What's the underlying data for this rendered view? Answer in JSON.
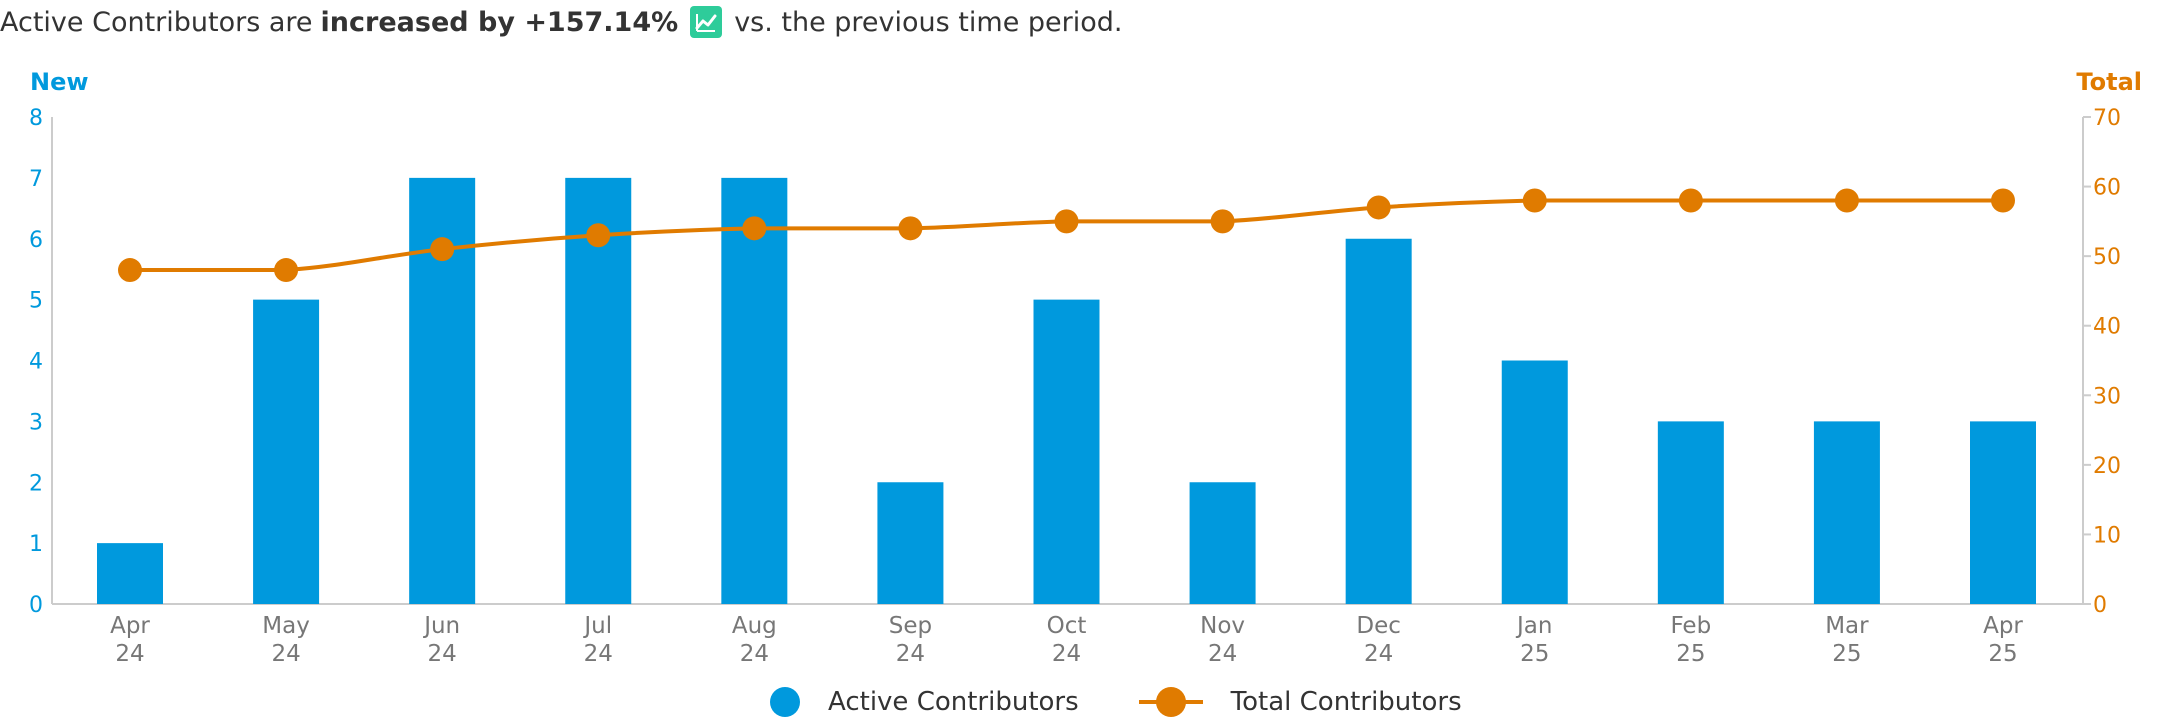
{
  "headline": {
    "prefix": "Active Contributors are",
    "emphasis": "increased by +157.14%",
    "suffix": "vs. the previous time period.",
    "badge_icon": "trend-up-chart-icon",
    "badge_color": "#2ecc9a"
  },
  "chart_data": {
    "type": "bar+line",
    "categories": [
      "Apr\n24",
      "May\n24",
      "Jun\n24",
      "Jul\n24",
      "Aug\n24",
      "Sep\n24",
      "Oct\n24",
      "Nov\n24",
      "Dec\n24",
      "Jan\n25",
      "Feb\n25",
      "Mar\n25",
      "Apr\n25"
    ],
    "y_left": {
      "title": "New",
      "min": 0,
      "max": 8,
      "ticks": [
        "0",
        "1",
        "2",
        "3",
        "4",
        "5",
        "6",
        "7",
        "8"
      ],
      "color": "#0099dd"
    },
    "y_right": {
      "title": "Total",
      "min": 0,
      "max": 70,
      "ticks": [
        "0",
        "10",
        "20",
        "30",
        "40",
        "50",
        "60",
        "70"
      ],
      "color": "#e07b00"
    },
    "series": [
      {
        "name": "Active Contributors",
        "type": "bar",
        "axis": "left",
        "color": "#0099dd",
        "values": [
          1,
          5,
          7,
          7,
          7,
          2,
          5,
          2,
          6,
          4,
          3,
          3,
          3
        ]
      },
      {
        "name": "Total Contributors",
        "type": "line",
        "axis": "right",
        "color": "#e07b00",
        "values": [
          48,
          48,
          51,
          53,
          54,
          54,
          55,
          55,
          57,
          58,
          58,
          58,
          58
        ]
      }
    ],
    "grid": false,
    "legend_position": "bottom-center"
  }
}
